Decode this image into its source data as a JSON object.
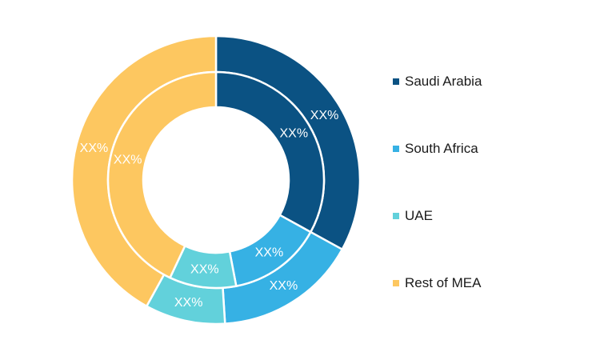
{
  "chart_data": {
    "type": "pie",
    "categories": [
      "Saudi Arabia",
      "South Africa",
      "UAE",
      "Rest of MEA"
    ],
    "series": [
      {
        "ring": "outer",
        "values": [
          33,
          16,
          9,
          42
        ],
        "labels": [
          "XX%",
          "XX%",
          "XX%",
          "XX%"
        ]
      },
      {
        "ring": "inner",
        "values": [
          33,
          14,
          10,
          43
        ],
        "labels": [
          "XX%",
          "XX%",
          "XX%",
          "XX%"
        ]
      }
    ],
    "colors": [
      "#0b5283",
      "#36b1e4",
      "#62d1db",
      "#fdc760"
    ],
    "legend_position": "right",
    "title": ""
  },
  "legend": {
    "items": [
      {
        "label": "Saudi Arabia",
        "color": "#0b5283"
      },
      {
        "label": "South Africa",
        "color": "#36b1e4"
      },
      {
        "label": "UAE",
        "color": "#62d1db"
      },
      {
        "label": "Rest of MEA",
        "color": "#fdc760"
      }
    ]
  }
}
